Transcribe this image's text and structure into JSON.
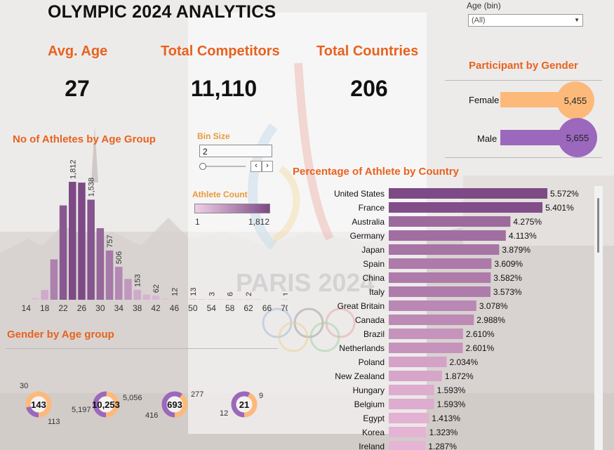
{
  "title": "OLYMPIC 2024 ANALYTICS",
  "kpis": {
    "avg_age_label": "Avg. Age",
    "avg_age_value": "27",
    "competitors_label": "Total Competitors",
    "competitors_value": "11,110",
    "countries_label": "Total Countries",
    "countries_value": "206"
  },
  "age_filter": {
    "label": "Age (bin)",
    "selected": "(All)"
  },
  "gender_section": {
    "title": "Participant by Gender",
    "rows": [
      {
        "label": "Female",
        "value": "5,455",
        "color": "#fdb97a"
      },
      {
        "label": "Male",
        "value": "5,655",
        "color": "#9b68bd"
      }
    ]
  },
  "bin_size": {
    "label": "Bin Size",
    "value": "2"
  },
  "athlete_count_legend": {
    "title": "Athlete Count",
    "min": "1",
    "max": "1,812"
  },
  "watermark": "PARIS 2024",
  "age_chart_title": "No of Athletes by Age Group",
  "country_chart_title": "Percentage of Athlete by Country",
  "gender_age_title": "Gender by Age group",
  "chart_data": [
    {
      "type": "bar",
      "title": "No of Athletes by Age Group",
      "categories": [
        "14",
        "16",
        "18",
        "20",
        "22",
        "24",
        "26",
        "28",
        "30",
        "32",
        "34",
        "36",
        "38",
        "40",
        "42",
        "44",
        "46",
        "48",
        "50",
        "52",
        "54",
        "56",
        "58",
        "60",
        "62",
        "64",
        "66",
        "68",
        "70"
      ],
      "x_tick_labels": [
        "14",
        "18",
        "22",
        "26",
        "30",
        "34",
        "38",
        "42",
        "46",
        "50",
        "54",
        "58",
        "62",
        "66",
        "70"
      ],
      "values": [
        0,
        34,
        150,
        620,
        1450,
        1812,
        1800,
        1538,
        1100,
        757,
        506,
        320,
        153,
        80,
        62,
        25,
        12,
        8,
        13,
        6,
        3,
        4,
        6,
        2,
        2,
        1,
        0,
        0,
        1
      ],
      "data_labels": [
        {
          "category": "24",
          "label": "1,812"
        },
        {
          "category": "28",
          "label": "1,538"
        },
        {
          "category": "32",
          "label": "757"
        },
        {
          "category": "34",
          "label": "506"
        },
        {
          "category": "38",
          "label": "153"
        },
        {
          "category": "42",
          "label": "62"
        },
        {
          "category": "46",
          "label": "12"
        },
        {
          "category": "50",
          "label": "13"
        },
        {
          "category": "54",
          "label": "3"
        },
        {
          "category": "58",
          "label": "6"
        },
        {
          "category": "62",
          "label": "2"
        },
        {
          "category": "70",
          "label": "1"
        }
      ],
      "color_range": [
        "#f0cfe6",
        "#7d4a86"
      ],
      "ylim": [
        0,
        1812
      ]
    },
    {
      "type": "bar",
      "orientation": "horizontal",
      "title": "Percentage of Athlete by Country",
      "categories": [
        "United States",
        "France",
        "Australia",
        "Germany",
        "Japan",
        "Spain",
        "China",
        "Italy",
        "Great Britain",
        "Canada",
        "Brazil",
        "Netherlands",
        "Poland",
        "New Zealand",
        "Hungary",
        "Belgium",
        "Egypt",
        "Korea",
        "Ireland"
      ],
      "values": [
        5.572,
        5.401,
        4.275,
        4.113,
        3.879,
        3.609,
        3.582,
        3.573,
        3.078,
        2.988,
        2.61,
        2.601,
        2.034,
        1.872,
        1.593,
        1.593,
        1.413,
        1.323,
        1.287
      ],
      "labels": [
        "5.572%",
        "5.401%",
        "4.275%",
        "4.113%",
        "3.879%",
        "3.609%",
        "3.582%",
        "3.573%",
        "3.078%",
        "2.988%",
        "2.610%",
        "2.601%",
        "2.034%",
        "1.872%",
        "1.593%",
        "1.593%",
        "1.413%",
        "1.323%",
        "1.287%"
      ],
      "color_range": [
        "#e8b6d6",
        "#7d4a86"
      ],
      "xlim": [
        0,
        5.572
      ]
    },
    {
      "type": "pie",
      "title": "Gender by Age group",
      "donuts": [
        {
          "center": "143",
          "female": 113,
          "male": 30
        },
        {
          "center": "10,253",
          "female": 5056,
          "male": 5197
        },
        {
          "center": "693",
          "female": 277,
          "male": 416
        },
        {
          "center": "21",
          "female": 9,
          "male": 12
        }
      ],
      "colors": {
        "female": "#fdb97a",
        "male": "#9b68bd"
      }
    }
  ]
}
